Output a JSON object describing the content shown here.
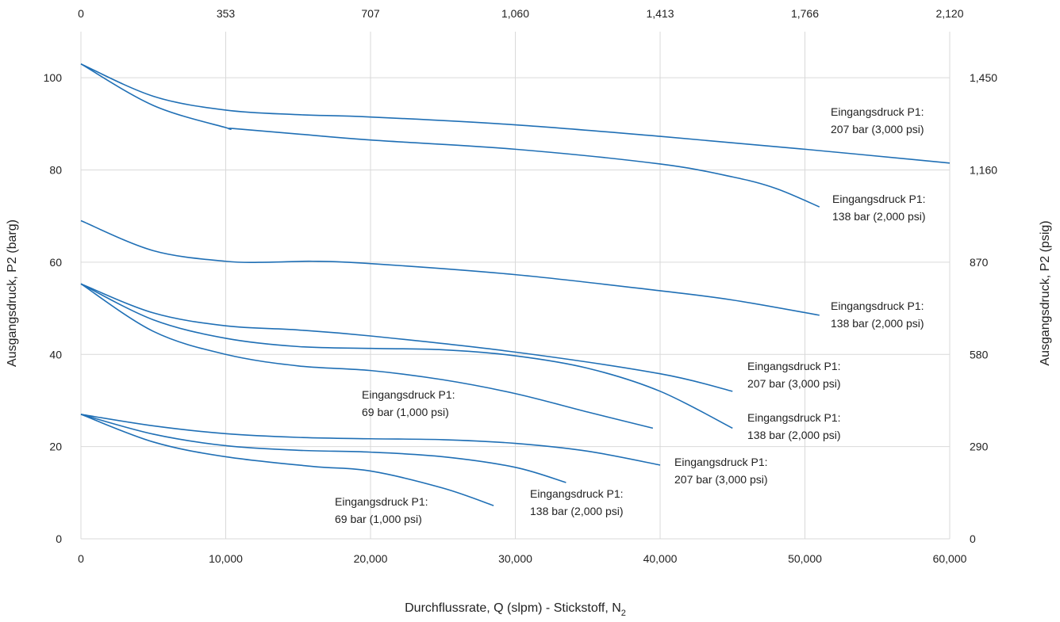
{
  "chart_data": {
    "type": "line",
    "xlabel": "Durchflussrate, Q (slpm) - Stickstoff, N",
    "xlabel_subscript": "2",
    "ylabel": "Ausgangsdruck, P2 (barg)",
    "y2label": "Ausgangsdruck, P2 (psig)",
    "xlim": [
      0,
      60000
    ],
    "ylim": [
      0,
      110
    ],
    "grid": true,
    "line_color": "#1f6fb5",
    "x_ticks": [
      {
        "value": 0,
        "label": "0"
      },
      {
        "value": 10000,
        "label": "10,000"
      },
      {
        "value": 20000,
        "label": "20,000"
      },
      {
        "value": 30000,
        "label": "30,000"
      },
      {
        "value": 40000,
        "label": "40,000"
      },
      {
        "value": 50000,
        "label": "50,000"
      },
      {
        "value": 60000,
        "label": "60,000"
      }
    ],
    "x2_ticks": [
      {
        "value": 0,
        "label": "0"
      },
      {
        "value": 10000,
        "label": "353"
      },
      {
        "value": 20000,
        "label": "707"
      },
      {
        "value": 30000,
        "label": "1,060"
      },
      {
        "value": 40000,
        "label": "1,413"
      },
      {
        "value": 50000,
        "label": "1,766"
      },
      {
        "value": 60000,
        "label": "2,120"
      }
    ],
    "y_ticks": [
      {
        "value": 0,
        "label": "0"
      },
      {
        "value": 20,
        "label": "20"
      },
      {
        "value": 40,
        "label": "40"
      },
      {
        "value": 60,
        "label": "60"
      },
      {
        "value": 80,
        "label": "80"
      },
      {
        "value": 100,
        "label": "100"
      }
    ],
    "y2_ticks": [
      {
        "value": 0,
        "label": "0"
      },
      {
        "value": 20,
        "label": "290"
      },
      {
        "value": 40,
        "label": "580"
      },
      {
        "value": 60,
        "label": "870"
      },
      {
        "value": 80,
        "label": "1,160"
      },
      {
        "value": 100,
        "label": "1,450"
      }
    ],
    "series": [
      {
        "x": [
          0,
          5000,
          10000,
          15000,
          20000,
          30000,
          40000,
          50000,
          60000
        ],
        "y": [
          103,
          96,
          93,
          92,
          91.5,
          89.8,
          87.3,
          84.5,
          81.5
        ],
        "label": [
          "Eingangsdruck P1:",
          "207 bar (3,000 psi)"
        ]
      },
      {
        "x": [
          0,
          5000,
          10000,
          10500,
          15000,
          20000,
          30000,
          40000,
          45000,
          48000,
          51000
        ],
        "y": [
          103,
          94,
          89.2,
          89,
          87.8,
          86.5,
          84.5,
          81.3,
          78.5,
          76,
          72
        ],
        "label": [
          "Eingangsdruck P1:",
          "138 bar (2,000 psi)"
        ]
      },
      {
        "x": [
          0,
          5000,
          10000,
          13000,
          16000,
          20000,
          30000,
          40000,
          45000,
          51000
        ],
        "y": [
          69,
          62.5,
          60.2,
          60,
          60.2,
          59.7,
          57.3,
          53.8,
          51.8,
          48.5
        ],
        "label": [
          "Eingangsdruck P1:",
          "138 bar (2,000 psi)"
        ]
      },
      {
        "x": [
          0,
          5000,
          10000,
          15000,
          20000,
          30000,
          40000,
          45000
        ],
        "y": [
          55.3,
          49,
          46.2,
          45.3,
          44,
          40.5,
          35.8,
          32
        ],
        "label": [
          "Eingangsdruck P1:",
          "207 bar (3,000 psi)"
        ]
      },
      {
        "x": [
          0,
          5000,
          10000,
          15000,
          20000,
          25000,
          30000,
          35000,
          40000,
          45000
        ],
        "y": [
          55.3,
          47.5,
          43.5,
          41.7,
          41.3,
          41,
          39.7,
          37,
          32,
          24
        ],
        "label": [
          "Eingangsdruck P1:",
          "138 bar (2,000 psi)"
        ]
      },
      {
        "x": [
          0,
          5000,
          10000,
          15000,
          20000,
          25000,
          30000,
          35000,
          39500
        ],
        "y": [
          55.3,
          45,
          40,
          37.5,
          36.5,
          34.5,
          31.5,
          27.5,
          24
        ],
        "label": [
          "Eingangsdruck P1:",
          "69 bar (1,000 psi)"
        ]
      },
      {
        "x": [
          0,
          5000,
          10000,
          15000,
          20000,
          25000,
          30000,
          35000,
          40000
        ],
        "y": [
          27,
          24.5,
          22.8,
          22,
          21.7,
          21.5,
          20.7,
          19,
          16
        ],
        "label": [
          "Eingangsdruck P1:",
          "207 bar (3,000 psi)"
        ]
      },
      {
        "x": [
          0,
          5000,
          10000,
          15000,
          20000,
          25000,
          30000,
          33500
        ],
        "y": [
          27,
          22.7,
          20.2,
          19.2,
          18.8,
          17.8,
          15.5,
          12.2
        ],
        "label": [
          "Eingangsdruck  P1:",
          "138 bar (2,000 psi)"
        ]
      },
      {
        "x": [
          0,
          5000,
          10000,
          16000,
          20000,
          25000,
          28500
        ],
        "y": [
          27,
          21,
          17.8,
          15.7,
          14.7,
          11,
          7.2
        ],
        "label": [
          "Eingangsdruck  P1:",
          "69 bar (1,000 psi)"
        ]
      }
    ]
  }
}
